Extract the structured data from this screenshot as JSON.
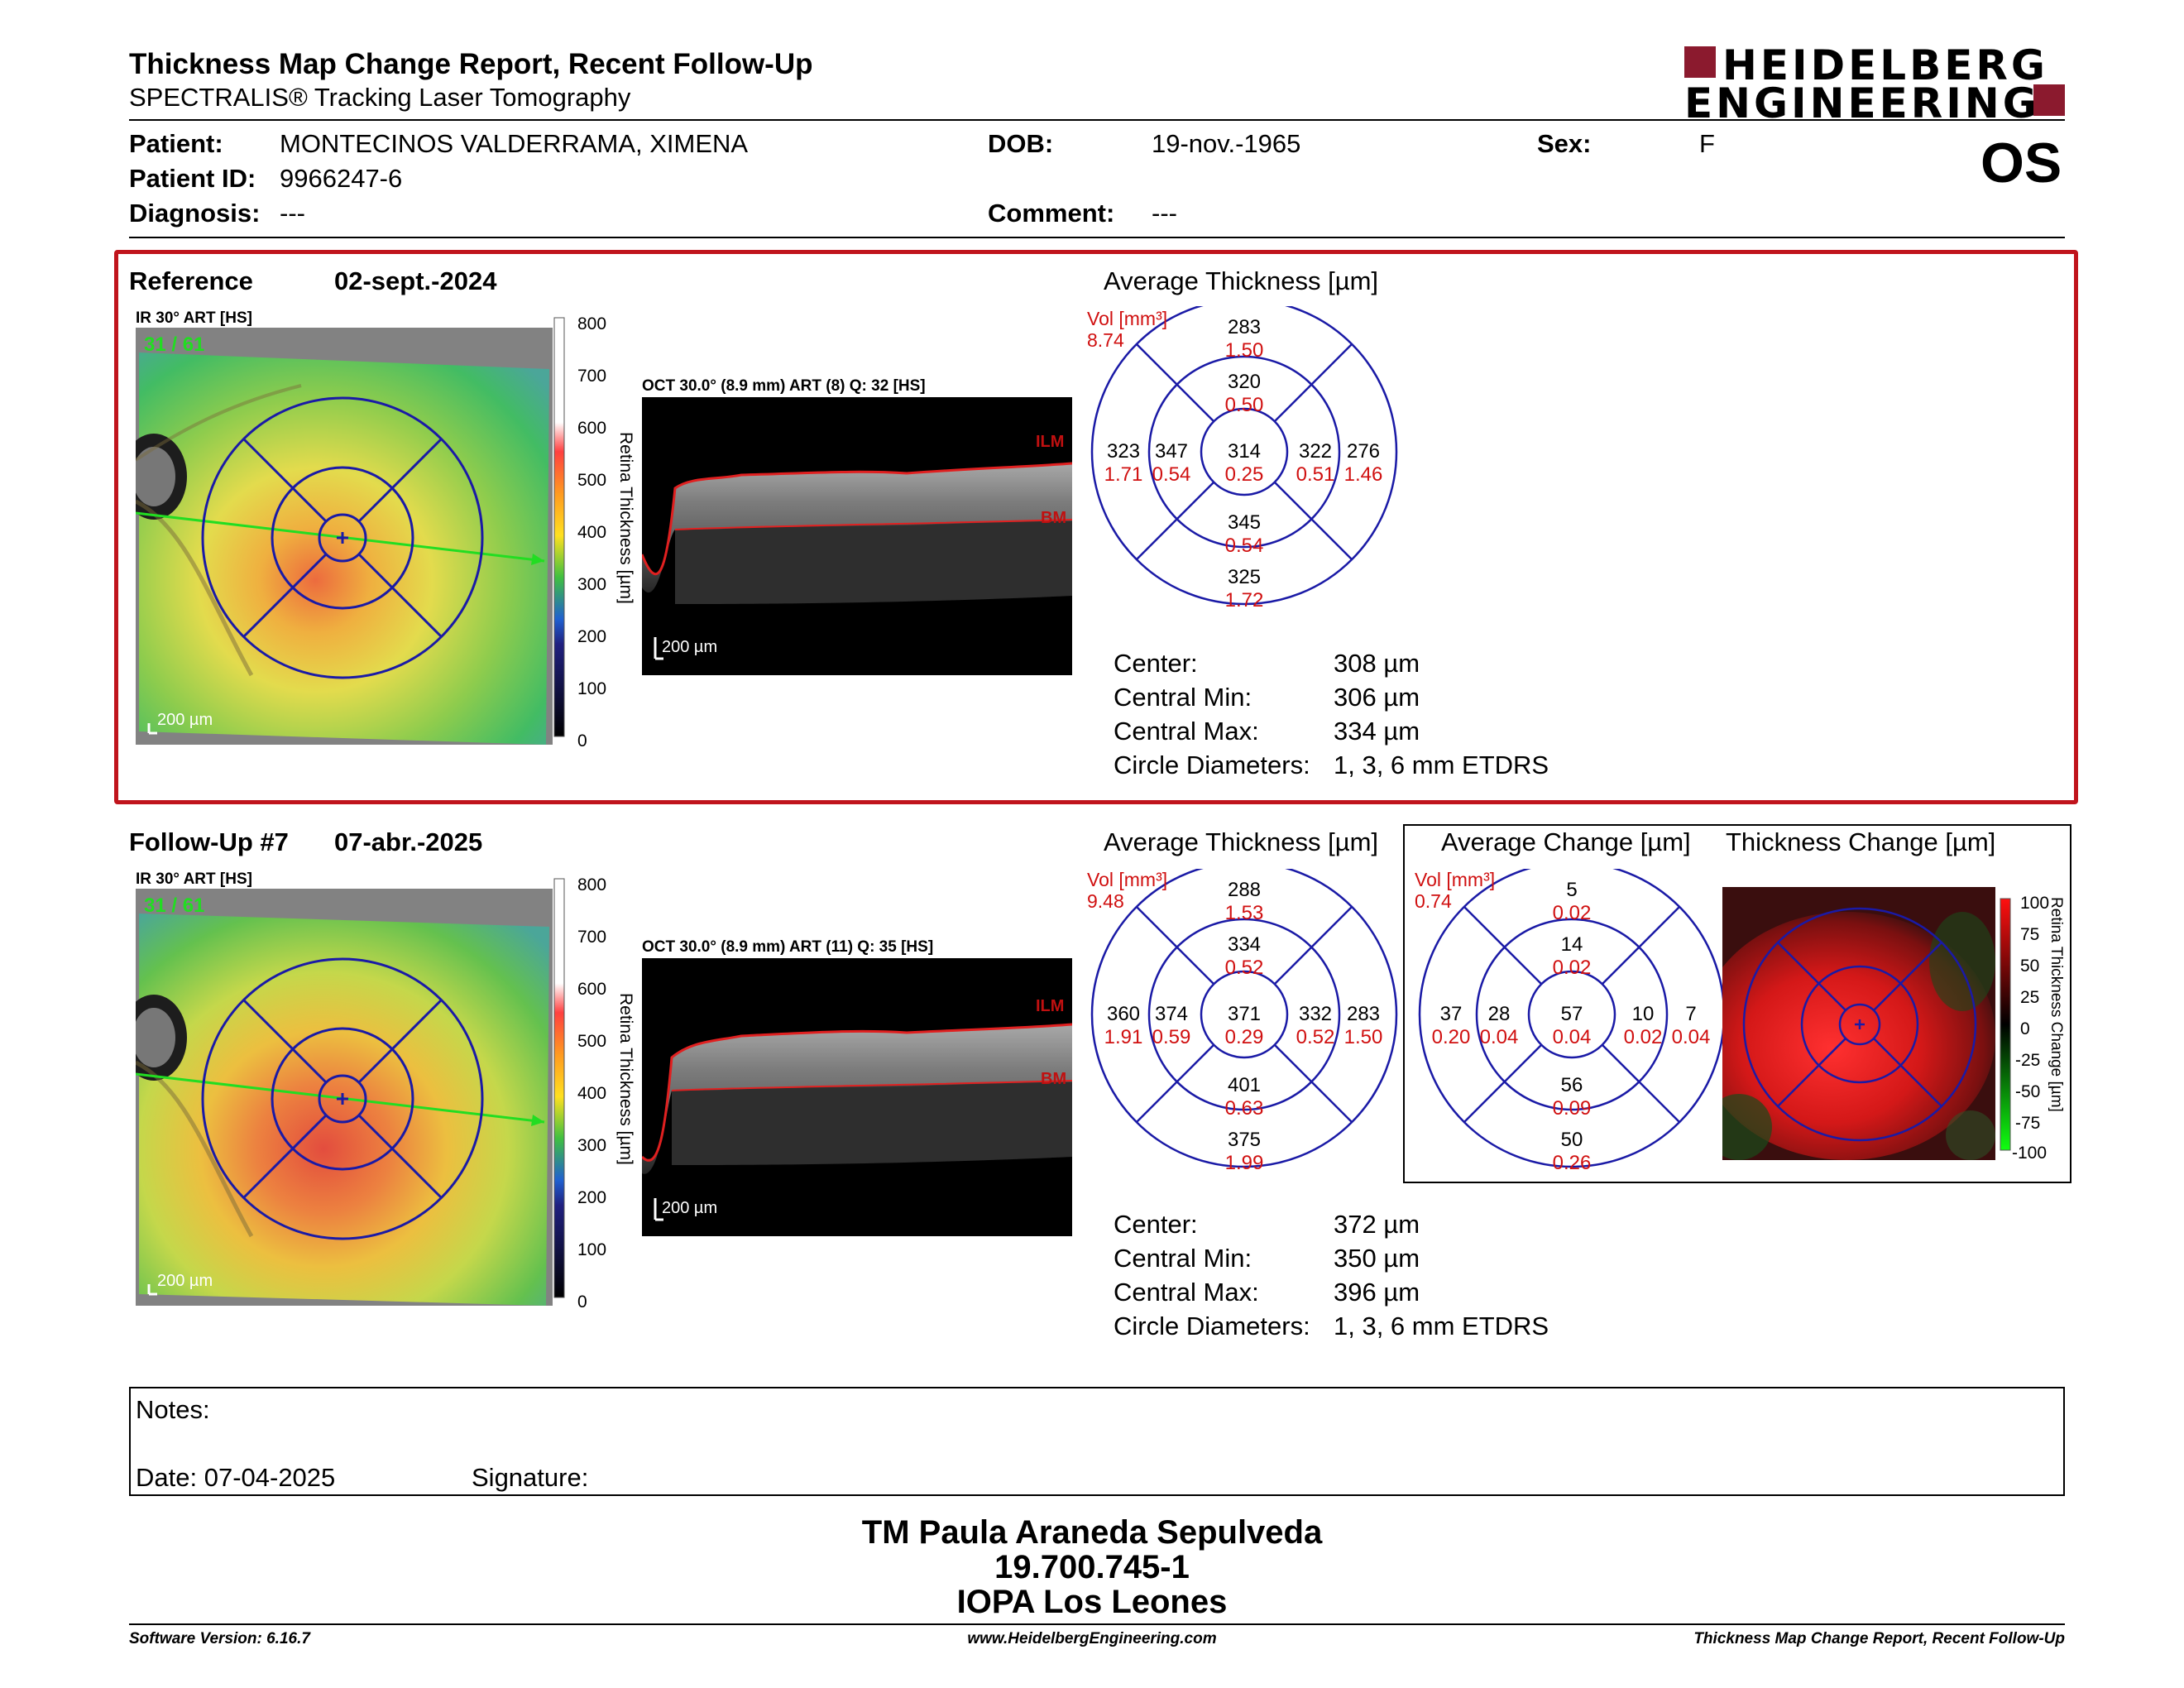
{
  "header": {
    "title": "Thickness Map Change Report, Recent Follow-Up",
    "subtitle": "SPECTRALIS® Tracking Laser Tomography",
    "logo_line1": "HEIDELBERG",
    "logo_line2": "ENGINEERING",
    "eye": "OS"
  },
  "patient": {
    "patient_label": "Patient:",
    "patient_value": "MONTECINOS VALDERRAMA, XIMENA",
    "id_label": "Patient ID:",
    "id_value": "9966247-6",
    "diagnosis_label": "Diagnosis:",
    "diagnosis_value": "---",
    "dob_label": "DOB:",
    "dob_value": "19-nov.-1965",
    "comment_label": "Comment:",
    "comment_value": "---",
    "sex_label": "Sex:",
    "sex_value": "F"
  },
  "reference": {
    "label": "Reference",
    "date": "02-sept.-2024",
    "ir_label": "IR 30° ART [HS]",
    "ir_counter": "31 / 61",
    "scale_label": "200 µm",
    "oct_label": "OCT 30.0° (8.9 mm) ART (8) Q: 32 [HS]",
    "oct_scale": "200 µm",
    "ilm": "ILM",
    "bm": "BM",
    "colorbar_title": "Retina Thickness [µm]",
    "colorbar_ticks": [
      "800",
      "700",
      "600",
      "500",
      "400",
      "300",
      "200",
      "100",
      "0"
    ],
    "avg_title": "Average Thickness [µm]",
    "vol_label": "Vol [mm³]",
    "vol_value": "8.74",
    "etdrs": {
      "outer_top": {
        "t": "283",
        "v": "1.50"
      },
      "inner_top": {
        "t": "320",
        "v": "0.50"
      },
      "outer_temporal": {
        "t": "323",
        "v": "1.71"
      },
      "inner_temporal": {
        "t": "347",
        "v": "0.54"
      },
      "center": {
        "t": "314",
        "v": "0.25"
      },
      "inner_nasal": {
        "t": "322",
        "v": "0.51"
      },
      "outer_nasal": {
        "t": "276",
        "v": "1.46"
      },
      "inner_bottom": {
        "t": "345",
        "v": "0.54"
      },
      "outer_bottom": {
        "t": "325",
        "v": "1.72"
      }
    },
    "stats": {
      "center_label": "Center:",
      "center_value": "308 µm",
      "min_label": "Central Min:",
      "min_value": "306 µm",
      "max_label": "Central Max:",
      "max_value": "334 µm",
      "diam_label": "Circle Diameters:",
      "diam_value": "1, 3, 6 mm ETDRS"
    }
  },
  "followup": {
    "label": "Follow-Up #7",
    "date": "07-abr.-2025",
    "ir_label": "IR 30° ART [HS]",
    "ir_counter": "31 / 61",
    "scale_label": "200 µm",
    "oct_label": "OCT 30.0° (8.9 mm) ART (11) Q: 35 [HS]",
    "oct_scale": "200 µm",
    "ilm": "ILM",
    "bm": "BM",
    "colorbar_title": "Retina Thickness [µm]",
    "colorbar_ticks": [
      "800",
      "700",
      "600",
      "500",
      "400",
      "300",
      "200",
      "100",
      "0"
    ],
    "avg_title": "Average Thickness [µm]",
    "vol_label": "Vol [mm³]",
    "vol_value": "9.48",
    "etdrs": {
      "outer_top": {
        "t": "288",
        "v": "1.53"
      },
      "inner_top": {
        "t": "334",
        "v": "0.52"
      },
      "outer_temporal": {
        "t": "360",
        "v": "1.91"
      },
      "inner_temporal": {
        "t": "374",
        "v": "0.59"
      },
      "center": {
        "t": "371",
        "v": "0.29"
      },
      "inner_nasal": {
        "t": "332",
        "v": "0.52"
      },
      "outer_nasal": {
        "t": "283",
        "v": "1.50"
      },
      "inner_bottom": {
        "t": "401",
        "v": "0.63"
      },
      "outer_bottom": {
        "t": "375",
        "v": "1.99"
      }
    },
    "stats": {
      "center_label": "Center:",
      "center_value": "372 µm",
      "min_label": "Central Min:",
      "min_value": "350 µm",
      "max_label": "Central Max:",
      "max_value": "396 µm",
      "diam_label": "Circle Diameters:",
      "diam_value": "1, 3, 6 mm ETDRS"
    }
  },
  "change": {
    "avg_title": "Average Change [µm]",
    "map_title": "Thickness Change [µm]",
    "vol_label": "Vol [mm³]",
    "vol_value": "0.74",
    "etdrs": {
      "outer_top": {
        "t": "5",
        "v": "0.02"
      },
      "inner_top": {
        "t": "14",
        "v": "0.02"
      },
      "outer_temporal": {
        "t": "37",
        "v": "0.20"
      },
      "inner_temporal": {
        "t": "28",
        "v": "0.04"
      },
      "center": {
        "t": "57",
        "v": "0.04"
      },
      "inner_nasal": {
        "t": "10",
        "v": "0.02"
      },
      "outer_nasal": {
        "t": "7",
        "v": "0.04"
      },
      "inner_bottom": {
        "t": "56",
        "v": "0.09"
      },
      "outer_bottom": {
        "t": "50",
        "v": "0.26"
      }
    },
    "colorbar_title": "Retina Thickness Change [µm]",
    "colorbar_ticks": [
      "100",
      "75",
      "50",
      "25",
      "0",
      "-25",
      "-50",
      "-75",
      "-100"
    ]
  },
  "notes": {
    "notes_label": "Notes:",
    "date_label": "Date: 07-04-2025",
    "signature_label": "Signature:"
  },
  "signer": {
    "name": "TM Paula Araneda Sepulveda",
    "id": "19.700.745-1",
    "org": "IOPA Los Leones"
  },
  "footer": {
    "version": "Software Version: 6.16.7",
    "website": "www.HeidelbergEngineering.com",
    "report": "Thickness Map Change Report, Recent Follow-Up"
  },
  "colors": {
    "ref_border": "#c0141c",
    "etdrs_line": "#1a1aa6",
    "value_red": "#d01010",
    "logo_red": "#8b1a2e",
    "irgreen": "#22dd22"
  }
}
